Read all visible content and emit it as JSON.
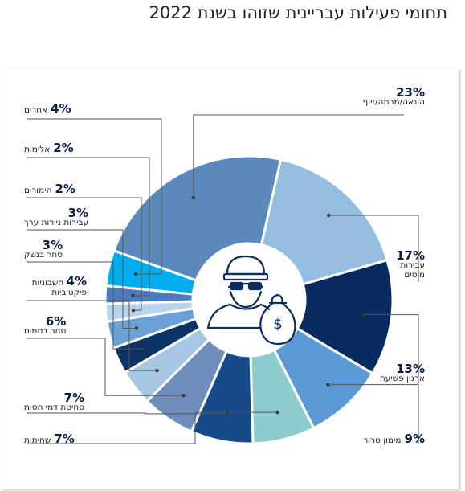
{
  "title": "תחומי פעילות עבריינית שזוהו בשנת 2022",
  "chart_data": {
    "type": "pie",
    "style": "donut",
    "slices": [
      {
        "label": "הונאה/מרמה/זיוף",
        "pct": "23%",
        "value": 23,
        "color": "#5b89bb"
      },
      {
        "label": "עבירות מיסים",
        "pct": "17%",
        "value": 17,
        "color": "#95bde0"
      },
      {
        "label": "ארגון פשיעה",
        "pct": "13%",
        "value": 13,
        "color": "#0a2b5f"
      },
      {
        "label": "מימון טרור",
        "pct": "9%",
        "value": 9,
        "color": "#5b9ad4"
      },
      {
        "label": "שחיתות",
        "pct": "7%",
        "value": 7,
        "color": "#8ccccd"
      },
      {
        "label": "סחיטת דמי חסות",
        "pct": "7%",
        "value": 7,
        "color": "#174a8b"
      },
      {
        "label": "סחר בסמים",
        "pct": "6%",
        "value": 6,
        "color": "#6e8fbd"
      },
      {
        "label": "חשבוניות פיקטיביות",
        "pct": "4%",
        "value": 4,
        "color": "#a6c6e4"
      },
      {
        "label": "סחר בנשק",
        "pct": "3%",
        "value": 3,
        "color": "#0c3366"
      },
      {
        "label": "עבירות ניירות ערך",
        "pct": "3%",
        "value": 3,
        "color": "#6aa2d8"
      },
      {
        "label": "הימורים",
        "pct": "2%",
        "value": 2,
        "color": "#b7d4ec"
      },
      {
        "label": "אלימות",
        "pct": "2%",
        "value": 2,
        "color": "#4a7bbf"
      },
      {
        "label": "אחרים",
        "pct": "4%",
        "value": 4,
        "color": "#00aeef"
      }
    ]
  }
}
